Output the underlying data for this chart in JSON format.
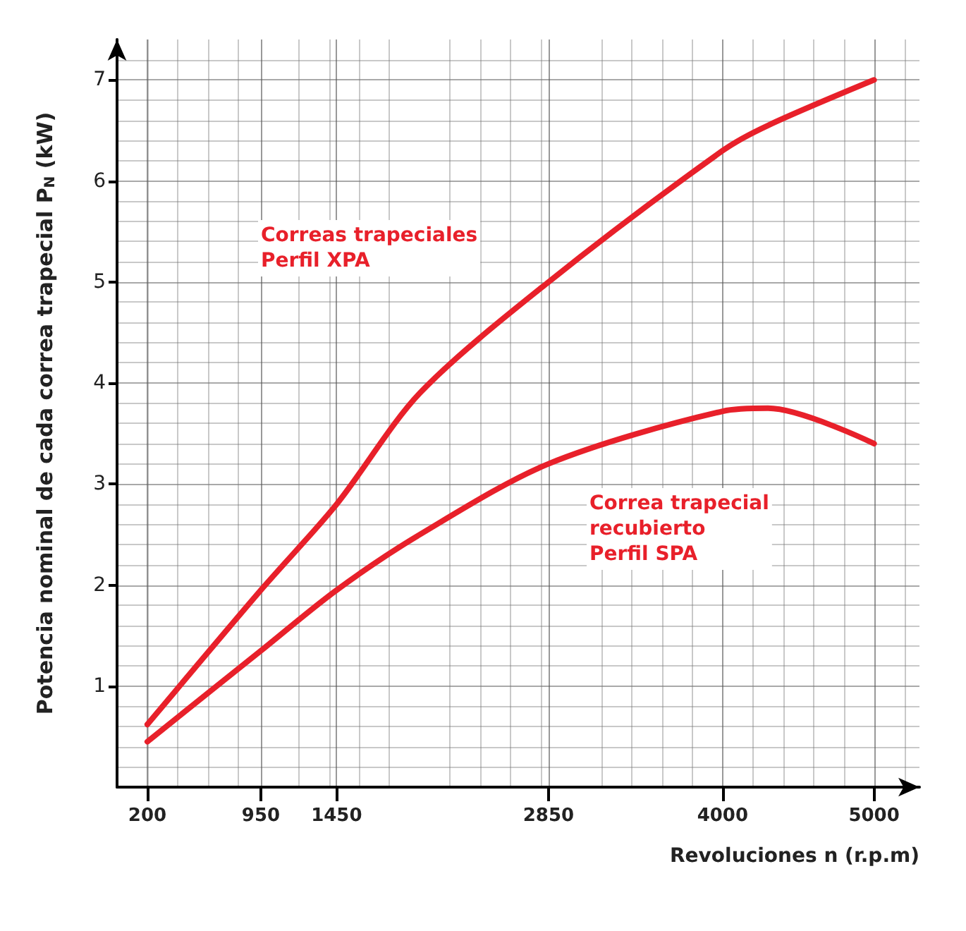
{
  "chart_data": {
    "type": "line",
    "xlabel": "Revoluciones n (r.p.m)",
    "ylabel": "Potencia nominal de cada correa trapecial P$_{N}$ (kW)",
    "x": [
      200,
      950,
      1450,
      2000,
      2850,
      4000,
      4300,
      5000
    ],
    "series": [
      {
        "name": "Correas trapeciales Perfil XPA",
        "color": "#e8202a",
        "values": [
          0.62,
          1.95,
          2.8,
          3.9,
          5.0,
          6.3,
          6.55,
          7.0
        ]
      },
      {
        "name": "Correa trapecial recubierto Perfil SPA",
        "color": "#e8202a",
        "values": [
          0.45,
          1.35,
          1.95,
          2.5,
          3.2,
          3.72,
          3.75,
          3.4
        ]
      }
    ],
    "xlim": [
      0,
      5300
    ],
    "xticks": [
      200,
      950,
      1450,
      2850,
      4000,
      5000
    ],
    "ylim": [
      0,
      7.4
    ],
    "yticks": [
      1,
      2,
      3,
      4,
      5,
      6,
      7
    ],
    "grid": true,
    "legend": false,
    "marker": "none",
    "line_style": "solid"
  }
}
